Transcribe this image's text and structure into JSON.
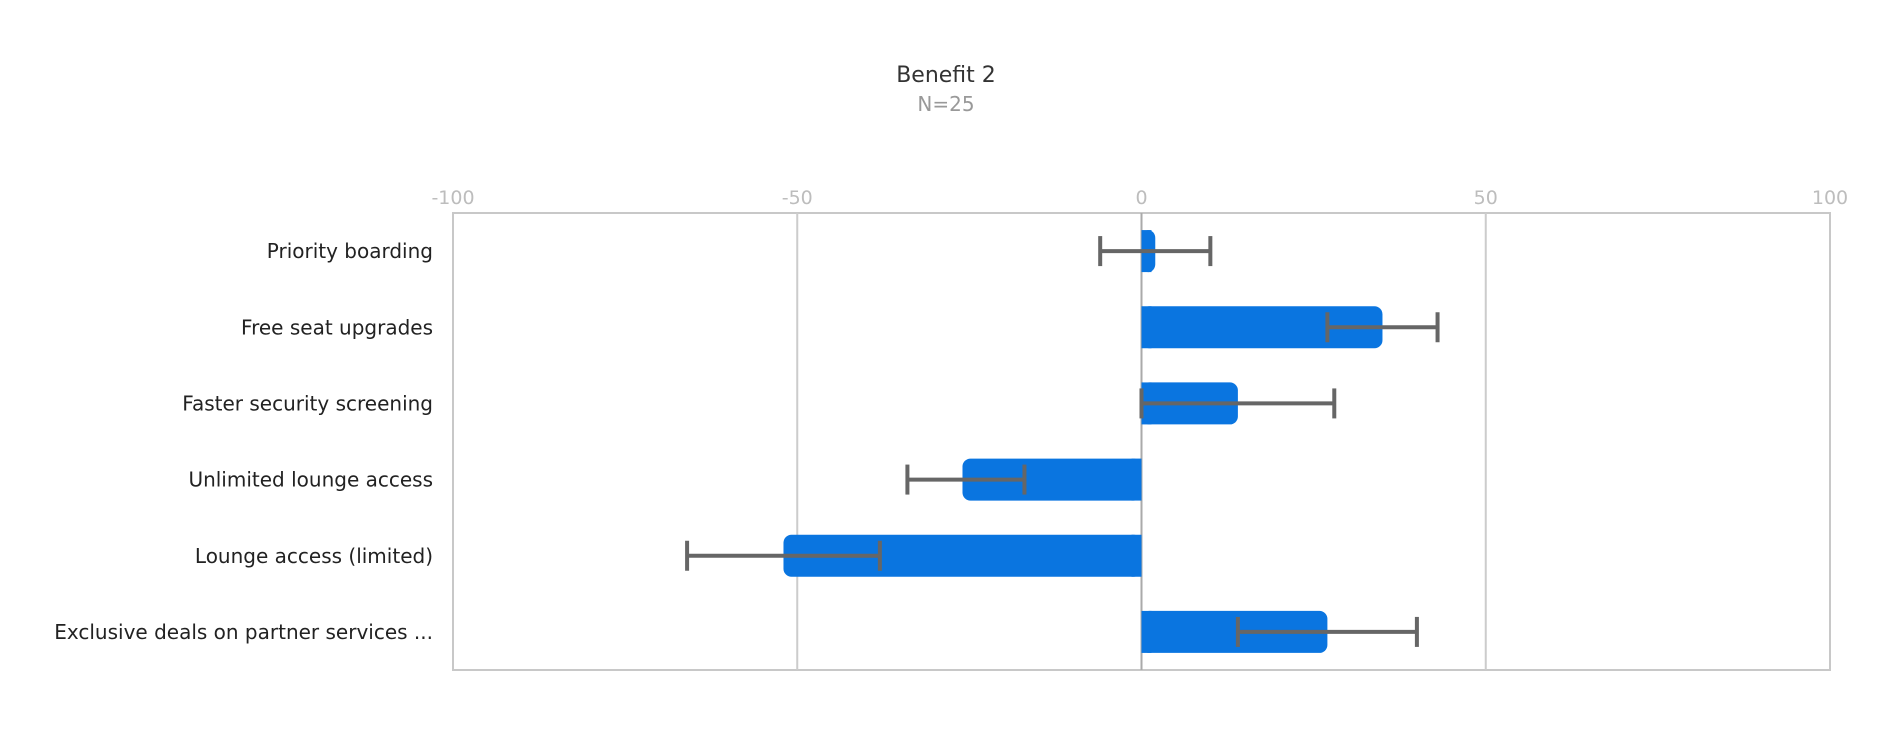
{
  "chart_data": {
    "type": "bar",
    "orientation": "horizontal",
    "title": "Benefit 2",
    "subtitle": "N=25",
    "xlim": [
      -100,
      100
    ],
    "x_ticks": [
      "-100",
      "-50",
      "0",
      "50",
      "100"
    ],
    "tick_values": [
      -100,
      -50,
      0,
      50,
      100
    ],
    "grid": true,
    "categories": [
      "Priority boarding",
      "Free seat upgrades",
      "Faster security screening",
      "Unlimited lounge access",
      "Lounge access (limited)",
      "Exclusive deals on partner services ..."
    ],
    "values": [
      2,
      35,
      14,
      -26,
      -52,
      27
    ],
    "error_low": [
      -6,
      27,
      0,
      -34,
      -66,
      14
    ],
    "error_high": [
      10,
      43,
      28,
      -17,
      -38,
      40
    ],
    "colors": {
      "bar": "#0a75e0",
      "error": "#666666",
      "grid": "#cccccc",
      "frame": "#c8c8c8"
    }
  }
}
